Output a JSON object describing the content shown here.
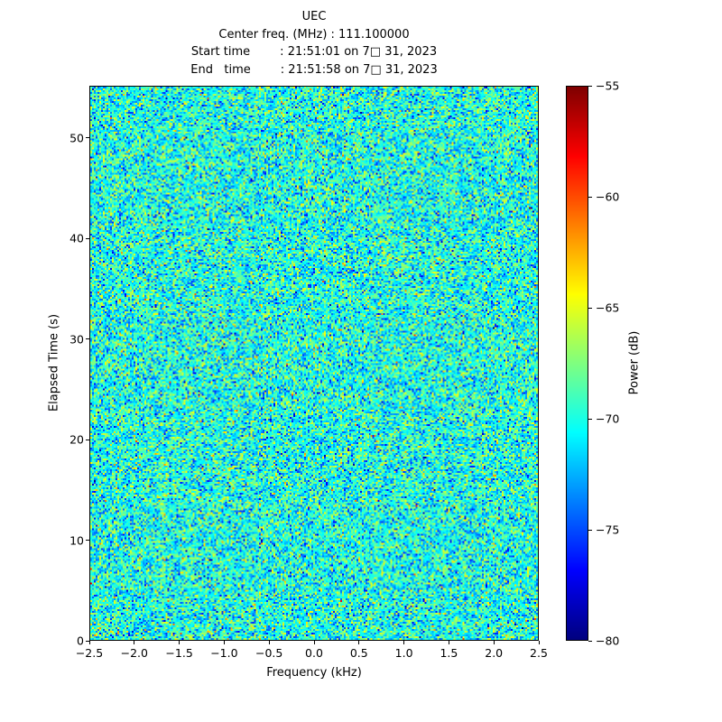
{
  "header": {
    "title": "UEC",
    "center_freq_line": "Center freq. (MHz) : 111.100000",
    "start_time_line": "Start time        : 21:51:01 on 7□ 31, 2023",
    "end_time_line": "End   time        : 21:51:58 on 7□ 31, 2023"
  },
  "chart_data": {
    "type": "heatmap",
    "title": "UEC",
    "xlabel": "Frequency (kHz)",
    "ylabel": "Elapsed Time (s)",
    "xlim": [
      -2.5,
      2.5
    ],
    "ylim": [
      0,
      55.2
    ],
    "x_ticks": [
      -2.5,
      -2.0,
      -1.5,
      -1.0,
      -0.5,
      0.0,
      0.5,
      1.0,
      1.5,
      2.0,
      2.5
    ],
    "x_tick_labels": [
      "−2.5",
      "−2.0",
      "−1.5",
      "−1.0",
      "−0.5",
      "0.0",
      "0.5",
      "1.0",
      "1.5",
      "2.0",
      "2.5"
    ],
    "y_ticks": [
      0,
      10,
      20,
      30,
      40,
      50
    ],
    "y_tick_labels": [
      "0",
      "10",
      "20",
      "30",
      "40",
      "50"
    ],
    "grid": false,
    "legend": "none",
    "colorbar": {
      "label": "Power (dB)",
      "position": "right",
      "colormap": "jet",
      "vmin": -80,
      "vmax": -55,
      "ticks": [
        -55,
        -60,
        -65,
        -70,
        -75,
        -80
      ],
      "tick_labels": [
        "−55",
        "−60",
        "−65",
        "−70",
        "−75",
        "−80"
      ]
    },
    "data": {
      "description": "Dense speckled broadband noise spectrogram (waterfall), no coherent signal; values cluster near -70 dB rendered mostly cyan/green with scattered blue and yellow speckles",
      "noise_mean_db": -70,
      "noise_std_db": 2.8,
      "center_freq_mhz": "111.100000",
      "start_time": "21:51:01",
      "end_time": "21:51:58",
      "date_label": "7□ 31, 2023"
    }
  }
}
